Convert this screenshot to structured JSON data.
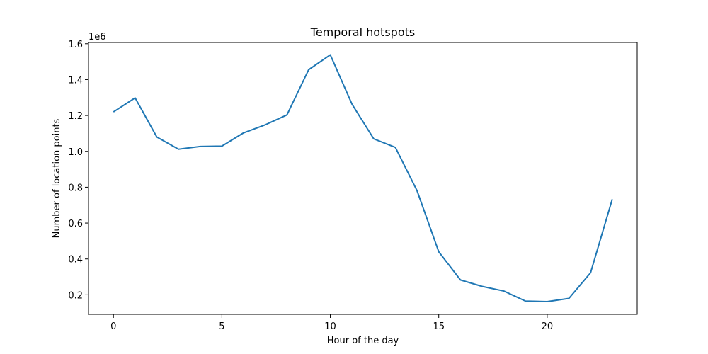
{
  "chart_data": {
    "type": "line",
    "title": "Temporal hotspots",
    "xlabel": "Hour of the day",
    "ylabel": "Number of location points",
    "y_offset_label": "1e6",
    "y_scale": 1000000,
    "x": [
      0,
      1,
      2,
      3,
      4,
      5,
      6,
      7,
      8,
      9,
      10,
      11,
      12,
      13,
      14,
      15,
      16,
      17,
      18,
      19,
      20,
      21,
      22,
      23
    ],
    "series": [
      {
        "name": "location points",
        "color": "#1f77b4",
        "values": [
          1220000,
          1298000,
          1080000,
          1012000,
          1027000,
          1029000,
          1103000,
          1148000,
          1203000,
          1455000,
          1538000,
          1263000,
          1070000,
          1022000,
          780000,
          440000,
          283000,
          247000,
          221000,
          165000,
          162000,
          180000,
          323000,
          733000
        ]
      }
    ],
    "xlim": [
      -1.15,
      24.15
    ],
    "ylim": [
      91000,
      1607000
    ],
    "xticks": [
      0,
      5,
      10,
      15,
      20
    ],
    "xtick_labels": [
      "0",
      "5",
      "10",
      "15",
      "20"
    ],
    "yticks": [
      200000,
      400000,
      600000,
      800000,
      1000000,
      1200000,
      1400000,
      1600000
    ],
    "ytick_labels": [
      "0.2",
      "0.4",
      "0.6",
      "0.8",
      "1.0",
      "1.2",
      "1.4",
      "1.6"
    ],
    "grid": false,
    "legend": "none"
  }
}
